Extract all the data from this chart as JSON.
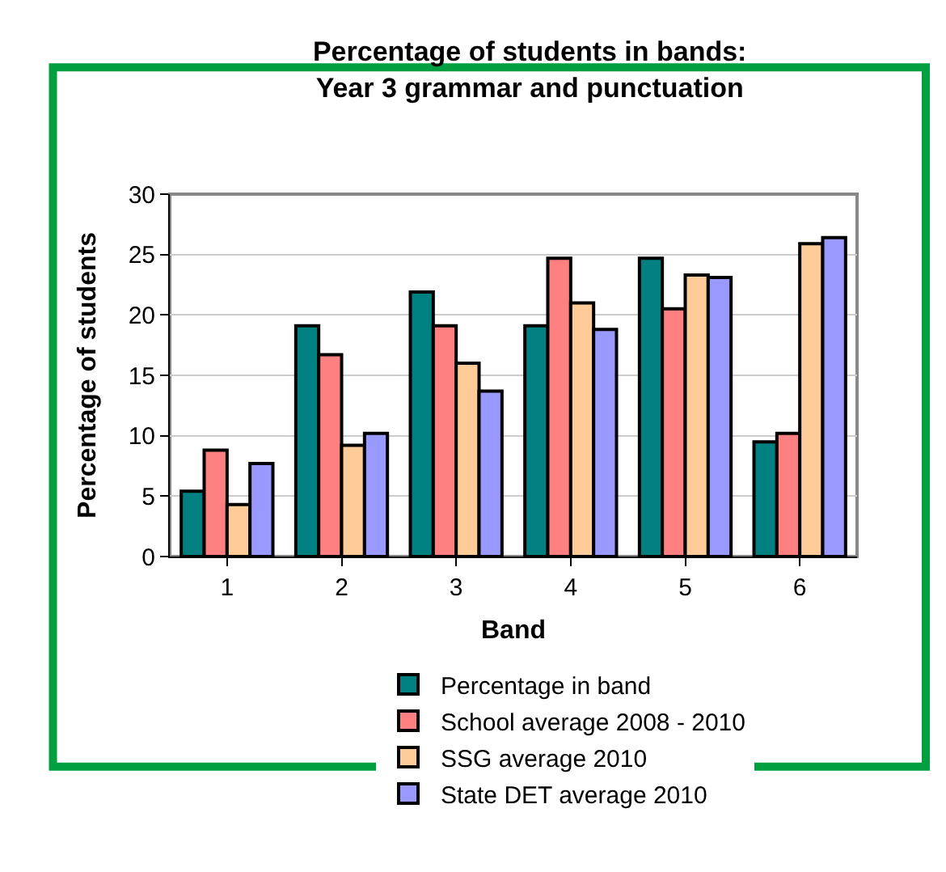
{
  "chart_data": {
    "type": "bar",
    "title": "Percentage of students in bands:\nYear 3 grammar and punctuation",
    "xlabel": "Band",
    "ylabel": "Percentage of students",
    "categories": [
      "1",
      "2",
      "3",
      "4",
      "5",
      "6"
    ],
    "series": [
      {
        "name": "Percentage in band",
        "color": "#008080",
        "values": [
          5.4,
          19.1,
          21.9,
          19.1,
          24.7,
          9.5
        ]
      },
      {
        "name": "School average 2008 - 2010",
        "color": "#ff8080",
        "values": [
          8.8,
          16.7,
          19.1,
          24.7,
          20.5,
          10.2
        ]
      },
      {
        "name": "SSG average 2010",
        "color": "#ffcc99",
        "values": [
          4.3,
          9.2,
          16.0,
          21.0,
          23.3,
          25.9
        ]
      },
      {
        "name": "State DET average 2010",
        "color": "#9999ff",
        "values": [
          7.7,
          10.2,
          13.7,
          18.8,
          23.1,
          26.4
        ]
      }
    ],
    "ylim": [
      0,
      30
    ],
    "yticks": [
      0,
      5,
      10,
      15,
      20,
      25,
      30
    ],
    "grid": "y",
    "legend": "bottom"
  }
}
